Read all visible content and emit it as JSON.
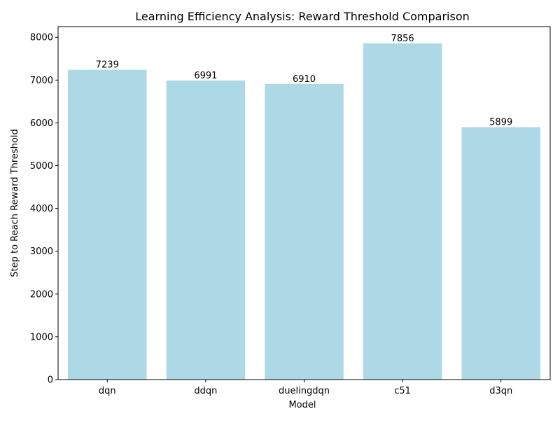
{
  "chart_data": {
    "type": "bar",
    "title": "Learning Efficiency Analysis: Reward Threshold Comparison",
    "xlabel": "Model",
    "ylabel": "Step to Reach Reward Threshold",
    "categories": [
      "dqn",
      "ddqn",
      "duelingdqn",
      "c51",
      "d3qn"
    ],
    "values": [
      7239,
      6991,
      6910,
      7856,
      5899
    ],
    "data_labels": [
      "7239",
      "6991",
      "6910",
      "7856",
      "5899"
    ],
    "ylim": [
      0,
      8249
    ],
    "yticks": [
      0,
      1000,
      2000,
      3000,
      4000,
      5000,
      6000,
      7000,
      8000
    ],
    "ytick_labels": [
      "0",
      "1000",
      "2000",
      "3000",
      "4000",
      "5000",
      "6000",
      "7000",
      "8000"
    ],
    "bar_color": "#add8e6",
    "grid": false,
    "legend": "none"
  }
}
